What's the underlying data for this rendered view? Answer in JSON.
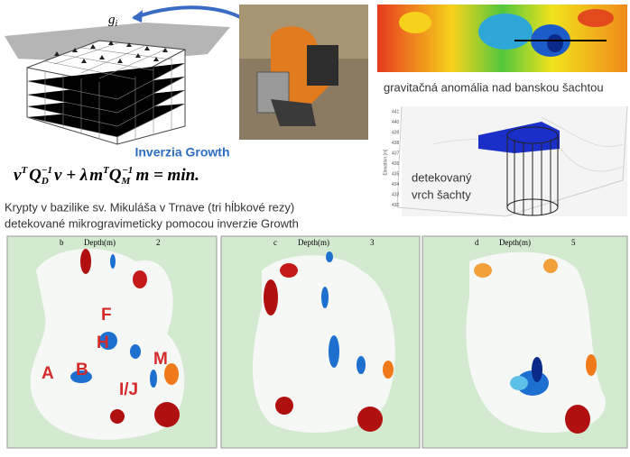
{
  "diagram": {
    "label": "g",
    "label_sub": "i"
  },
  "photo_caption": "Inverzia Growth",
  "formula": [
    "v",
    "T",
    "Q",
    "D",
    "−1",
    "v + λ",
    "m",
    "T",
    "Q",
    "M",
    "−1",
    "m = min."
  ],
  "description": [
    "Krypty v bazilike sv. Mikuláša v Trnave (tri hĺbkové rezy)",
    "detekované mikrogravimeticky pomocou inverzie Growth"
  ],
  "gravity_caption": "gravitačná anomália nad banskou šachtou",
  "shaft_plot": {
    "axis_label": "Elevation [m]",
    "ticks": [
      "441",
      "440",
      "439",
      "438",
      "437",
      "436",
      "435",
      "434",
      "433",
      "432"
    ],
    "annotation": [
      "detekovaný",
      "vrch šachty"
    ]
  },
  "panels": [
    {
      "letter": "b",
      "axis": "Depth(m)",
      "depth": "2",
      "labels": [
        "F",
        "H",
        "A",
        "B",
        "M",
        "I/J"
      ]
    },
    {
      "letter": "c",
      "axis": "Depth(m)",
      "depth": "3"
    },
    {
      "letter": "d",
      "axis": "Depth(m)",
      "depth": "5"
    }
  ]
}
